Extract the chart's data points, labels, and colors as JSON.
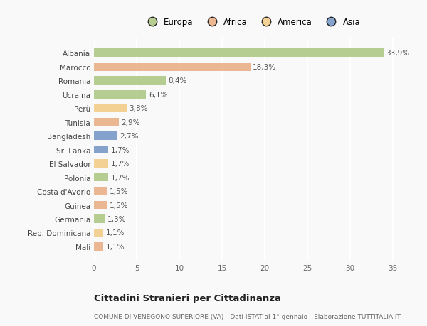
{
  "categories": [
    "Albania",
    "Marocco",
    "Romania",
    "Ucraina",
    "Perù",
    "Tunisia",
    "Bangladesh",
    "Sri Lanka",
    "El Salvador",
    "Polonia",
    "Costa d'Avorio",
    "Guinea",
    "Germania",
    "Rep. Dominicana",
    "Mali"
  ],
  "values": [
    33.9,
    18.3,
    8.4,
    6.1,
    3.8,
    2.9,
    2.7,
    1.7,
    1.7,
    1.7,
    1.5,
    1.5,
    1.3,
    1.1,
    1.1
  ],
  "labels": [
    "33,9%",
    "18,3%",
    "8,4%",
    "6,1%",
    "3,8%",
    "2,9%",
    "2,7%",
    "1,7%",
    "1,7%",
    "1,7%",
    "1,5%",
    "1,5%",
    "1,3%",
    "1,1%",
    "1,1%"
  ],
  "colors": [
    "#a8c47a",
    "#e8a87c",
    "#a8c47a",
    "#a8c47a",
    "#f2c97e",
    "#e8a87c",
    "#6b8fc2",
    "#6b8fc2",
    "#f2c97e",
    "#a8c47a",
    "#e8a87c",
    "#e8a87c",
    "#a8c47a",
    "#f2c97e",
    "#e8a87c"
  ],
  "legend_labels": [
    "Europa",
    "Africa",
    "America",
    "Asia"
  ],
  "legend_colors": [
    "#a8c47a",
    "#e8a87c",
    "#f2c97e",
    "#6b8fc2"
  ],
  "title1": "Cittadini Stranieri per Cittadinanza",
  "title2": "COMUNE DI VENEGONO SUPERIORE (VA) - Dati ISTAT al 1° gennaio - Elaborazione TUTTITALIA.IT",
  "xlim": [
    0,
    37
  ],
  "xticks": [
    0,
    5,
    10,
    15,
    20,
    25,
    30,
    35
  ],
  "background_color": "#f9f9f9",
  "bar_alpha": 0.82,
  "label_fontsize": 7.5,
  "tick_fontsize": 7.5,
  "legend_fontsize": 8.5
}
